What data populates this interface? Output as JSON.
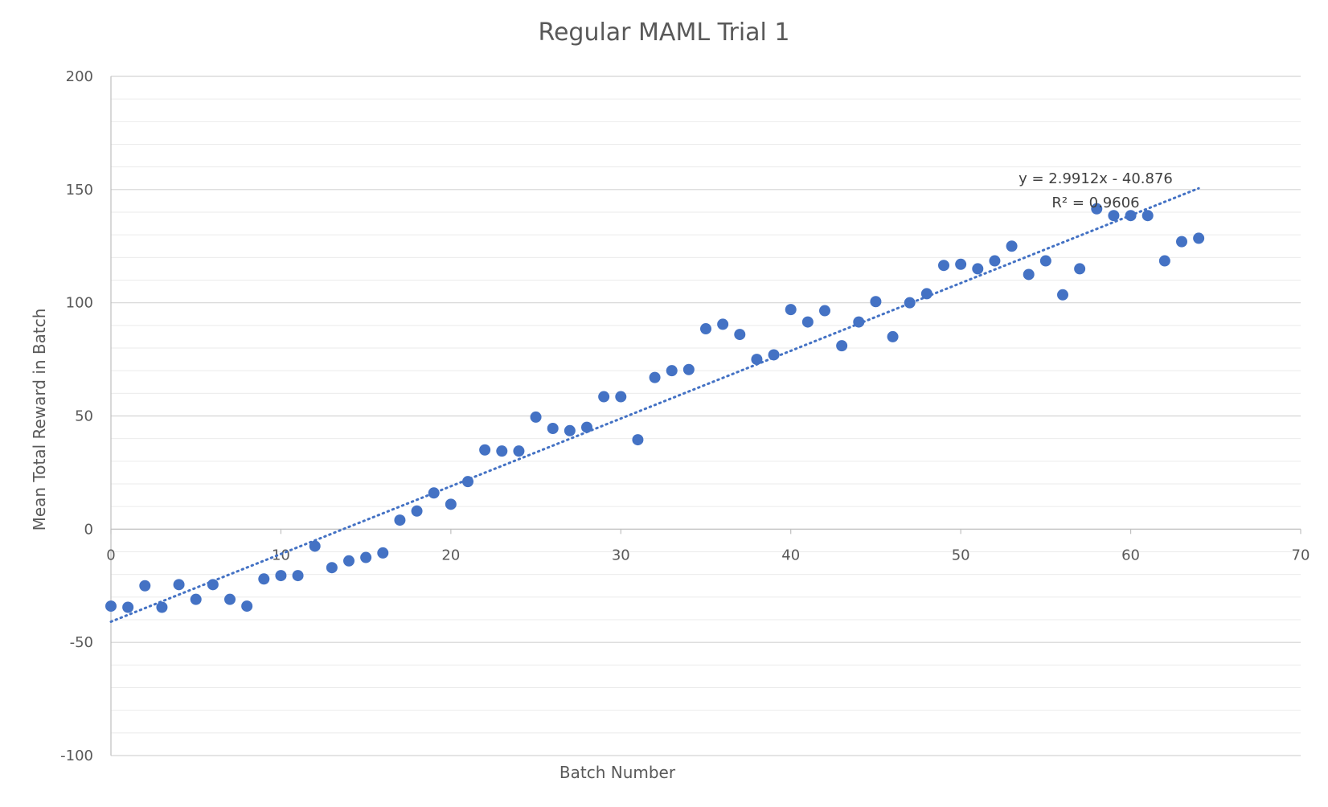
{
  "chart_data": {
    "type": "scatter",
    "title": "Regular MAML Trial 1",
    "xlabel": "Batch Number",
    "ylabel": "Mean Total Reward in Batch",
    "xlim": [
      0,
      70
    ],
    "ylim": [
      -100,
      200
    ],
    "x_ticks": [
      0,
      10,
      20,
      30,
      40,
      50,
      60,
      70
    ],
    "y_ticks": [
      -100,
      -50,
      0,
      50,
      100,
      150,
      200
    ],
    "major_grid_step": 50,
    "minor_grid_step": 10,
    "grid": true,
    "legend": "none",
    "marker_color": "#4472c4",
    "series": [
      {
        "points": [
          [
            0,
            -34
          ],
          [
            1,
            -34.5
          ],
          [
            2,
            -25
          ],
          [
            3,
            -34.5
          ],
          [
            4,
            -24.5
          ],
          [
            5,
            -31
          ],
          [
            6,
            -24.5
          ],
          [
            7,
            -31
          ],
          [
            8,
            -34
          ],
          [
            9,
            -22
          ],
          [
            10,
            -20.5
          ],
          [
            11,
            -20.5
          ],
          [
            12,
            -7.5
          ],
          [
            13,
            -17
          ],
          [
            14,
            -14
          ],
          [
            15,
            -12.5
          ],
          [
            16,
            -10.5
          ],
          [
            17,
            4
          ],
          [
            18,
            8
          ],
          [
            19,
            16
          ],
          [
            20,
            11
          ],
          [
            21,
            21
          ],
          [
            22,
            35
          ],
          [
            23,
            34.5
          ],
          [
            24,
            34.5
          ],
          [
            25,
            49.5
          ],
          [
            26,
            44.5
          ],
          [
            27,
            43.5
          ],
          [
            28,
            45
          ],
          [
            29,
            58.5
          ],
          [
            30,
            58.5
          ],
          [
            31,
            39.5
          ],
          [
            32,
            67
          ],
          [
            33,
            70
          ],
          [
            34,
            70.5
          ],
          [
            35,
            88.5
          ],
          [
            36,
            90.5
          ],
          [
            37,
            86
          ],
          [
            38,
            75
          ],
          [
            39,
            77
          ],
          [
            40,
            97
          ],
          [
            41,
            91.5
          ],
          [
            42,
            96.5
          ],
          [
            43,
            81
          ],
          [
            44,
            91.5
          ],
          [
            45,
            100.5
          ],
          [
            46,
            85
          ],
          [
            47,
            100
          ],
          [
            48,
            104
          ],
          [
            49,
            116.5
          ],
          [
            50,
            117
          ],
          [
            51,
            115
          ],
          [
            52,
            118.5
          ],
          [
            53,
            125
          ],
          [
            54,
            112.5
          ],
          [
            55,
            118.5
          ],
          [
            56,
            103.5
          ],
          [
            57,
            115
          ],
          [
            58,
            141.5
          ],
          [
            59,
            138.5
          ],
          [
            60,
            138.5
          ],
          [
            61,
            138.5
          ],
          [
            62,
            118.5
          ],
          [
            63,
            127
          ],
          [
            64,
            128.5
          ]
        ]
      }
    ],
    "trendline": {
      "type": "linear",
      "slope": 2.9912,
      "intercept": -40.876,
      "x_range": [
        0,
        64
      ],
      "equation_label": "y = 2.9912x - 40.876",
      "r2_label": "R² = 0.9606",
      "style": "dotted"
    }
  }
}
